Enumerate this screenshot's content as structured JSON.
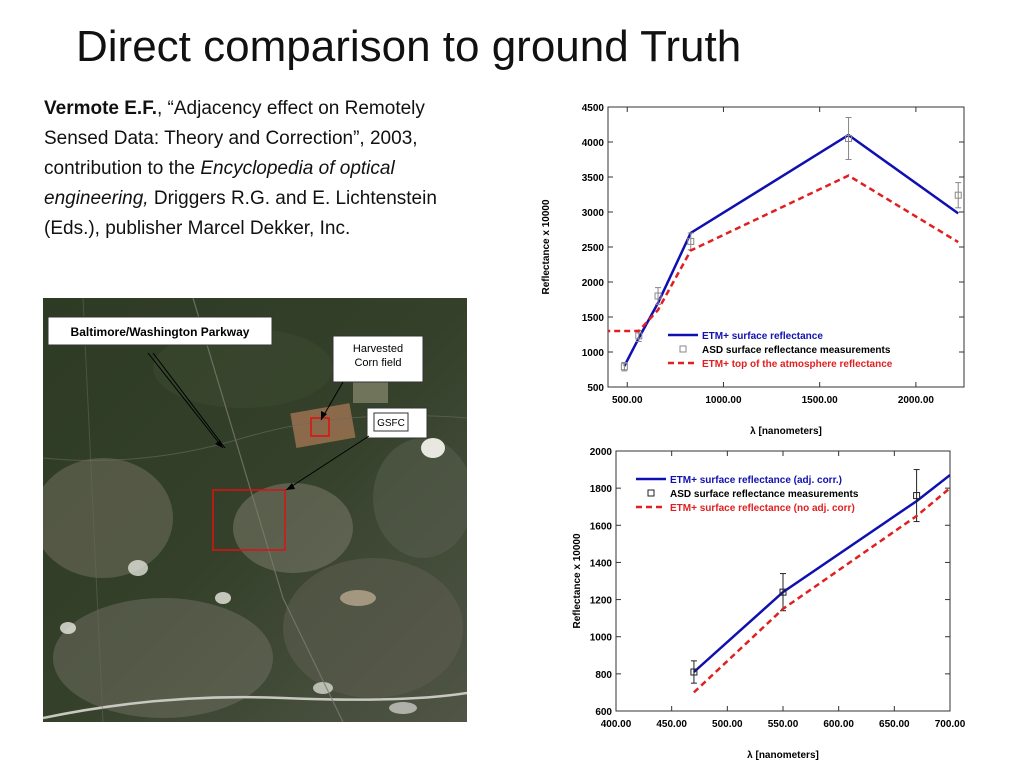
{
  "slide": {
    "title": "Direct comparison to ground Truth",
    "citation": {
      "author": "Vermote E.F.",
      "after_author": ", “Adjacency effect on Remotely Sensed Data: Theory and Correction”, 2003, contribution to the ",
      "book": "Encyclopedia of optical engineering,",
      "after_book": " Driggers R.G. and E. Lichtenstein (Eds.), publisher Marcel Dekker, Inc."
    }
  },
  "satellite_image": {
    "labels": {
      "parkway": "Baltimore/Washington Parkway",
      "corn_field": "Harvested Corn field",
      "gsfc": "GSFC"
    }
  },
  "chart_data": [
    {
      "type": "line",
      "xlabel": "λ [nanometers]",
      "ylabel": "Reflectance x 10000",
      "xlim": [
        400,
        2250
      ],
      "ylim": [
        500,
        4500
      ],
      "xticks": [
        500,
        1000,
        1500,
        2000
      ],
      "xtick_labels": [
        "500.00",
        "1000.00",
        "1500.00",
        "2000.00"
      ],
      "yticks": [
        500,
        1000,
        1500,
        2000,
        2500,
        3000,
        3500,
        4000,
        4500
      ],
      "ytick_labels": [
        "500",
        "1000",
        "1500",
        "2000",
        "2500",
        "3000",
        "3500",
        "4000",
        "4500"
      ],
      "grid": false,
      "legend_position": "lower-right",
      "series": [
        {
          "name": "ETM+ surface reflectance",
          "style": "line",
          "color": "#1010b0",
          "points": [
            [
              485,
              800
            ],
            [
              560,
              1200
            ],
            [
              660,
              1700
            ],
            [
              830,
              2700
            ],
            [
              1650,
              4100
            ],
            [
              2220,
              2980
            ]
          ]
        },
        {
          "name": "ASD surface reflectance measurements",
          "style": "marker",
          "color": "#888888",
          "points": [
            [
              485,
              790
            ],
            [
              560,
              1230
            ],
            [
              660,
              1800
            ],
            [
              830,
              2580
            ],
            [
              1650,
              4050
            ],
            [
              2220,
              3240
            ]
          ],
          "errors": [
            60,
            80,
            120,
            120,
            300,
            180
          ]
        },
        {
          "name": "ETM+ top of the atmosphere reflectance",
          "style": "dashed",
          "color": "#e02020",
          "points": [
            [
              380,
              1300
            ],
            [
              560,
              1300
            ],
            [
              660,
              1600
            ],
            [
              830,
              2450
            ],
            [
              1650,
              3520
            ],
            [
              2220,
              2570
            ]
          ]
        }
      ]
    },
    {
      "type": "line",
      "xlabel": "λ [nanometers]",
      "ylabel": "Reflectance x 10000",
      "xlim": [
        400,
        700
      ],
      "ylim": [
        600,
        2000
      ],
      "xticks": [
        400,
        450,
        500,
        550,
        600,
        650,
        700
      ],
      "xtick_labels": [
        "400.00",
        "450.00",
        "500.00",
        "550.00",
        "600.00",
        "650.00",
        "700.00"
      ],
      "yticks": [
        600,
        800,
        1000,
        1200,
        1400,
        1600,
        1800,
        2000
      ],
      "ytick_labels": [
        "600",
        "800",
        "1000",
        "1200",
        "1400",
        "1600",
        "1800",
        "2000"
      ],
      "grid": false,
      "legend_position": "top-left",
      "series": [
        {
          "name": "ETM+ surface reflectance (adj. corr.)",
          "style": "line",
          "color": "#1010b0",
          "points": [
            [
              470,
              810
            ],
            [
              550,
              1240
            ],
            [
              670,
              1730
            ],
            [
              700,
              1870
            ]
          ]
        },
        {
          "name": "ASD surface reflectance measurements",
          "style": "marker",
          "color": "#222222",
          "points": [
            [
              470,
              810
            ],
            [
              550,
              1240
            ],
            [
              670,
              1760
            ]
          ],
          "errors": [
            60,
            100,
            140
          ]
        },
        {
          "name": "ETM+ surface reflectance (no adj. corr)",
          "style": "dashed",
          "color": "#e02020",
          "points": [
            [
              470,
              700
            ],
            [
              550,
              1150
            ],
            [
              670,
              1650
            ],
            [
              700,
              1800
            ]
          ]
        }
      ]
    }
  ]
}
